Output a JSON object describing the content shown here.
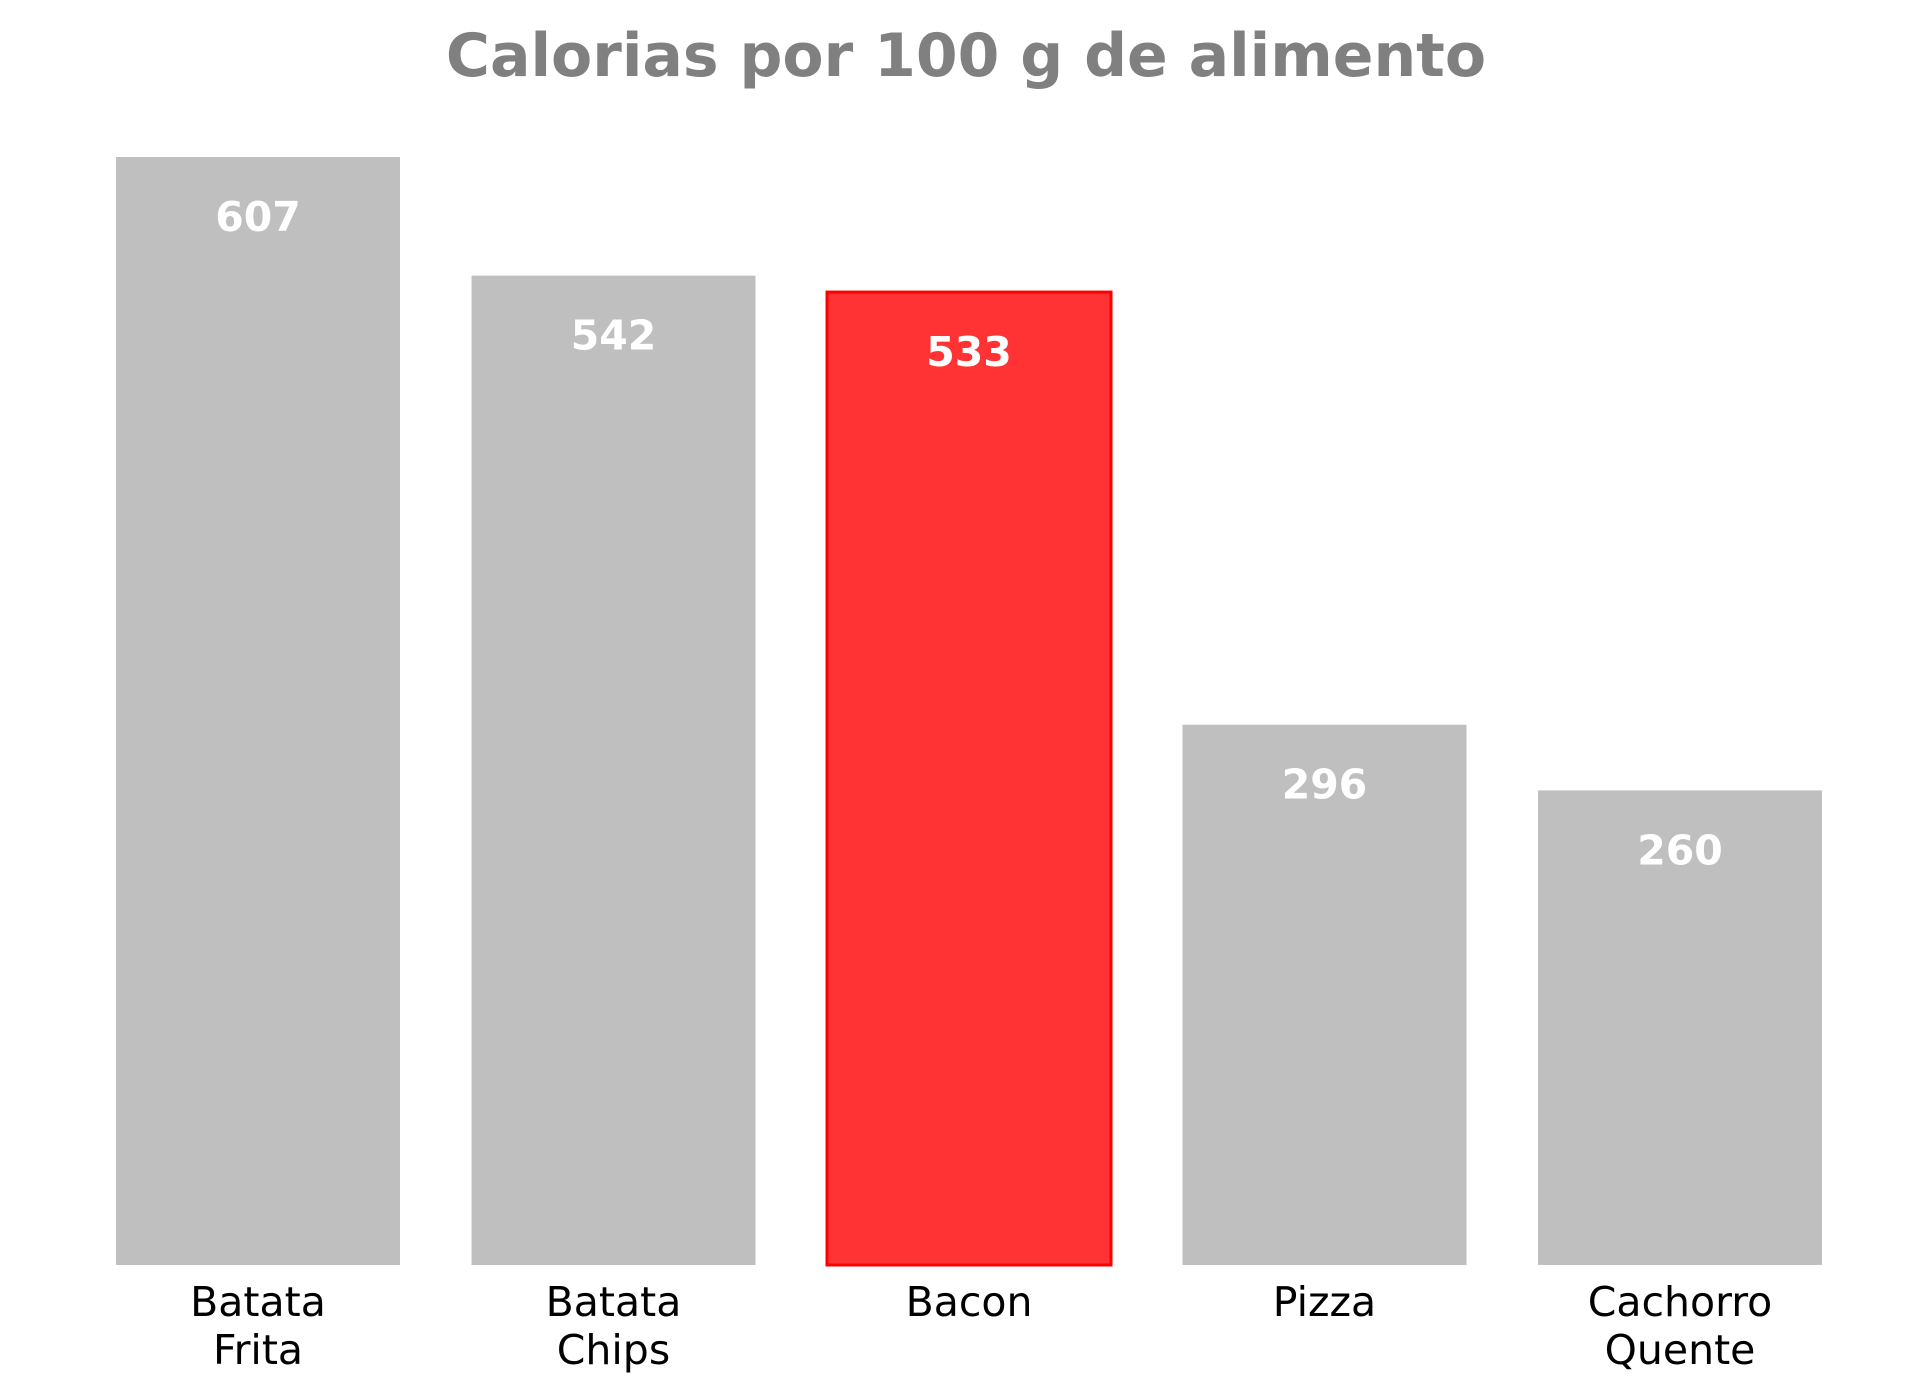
{
  "chart_data": {
    "type": "bar",
    "title": "Calorias por 100 g de alimento",
    "xlabel": "",
    "ylabel": "",
    "categories": [
      [
        "Batata",
        "Frita"
      ],
      [
        "Batata",
        "Chips"
      ],
      [
        "Bacon"
      ],
      [
        "Pizza"
      ],
      [
        "Cachorro",
        "Quente"
      ]
    ],
    "values": [
      607,
      542,
      533,
      296,
      260
    ],
    "data_labels": [
      "607",
      "542",
      "533",
      "296",
      "260"
    ],
    "highlight_index": 2,
    "ylim": [
      0,
      607
    ],
    "grid": false,
    "legend": "none",
    "axes_visible": false
  },
  "colors": {
    "title": "#808080",
    "bar_default": "#bfbfbf",
    "bar_highlight": "#ff3333",
    "bar_highlight_edge": "#ff0000",
    "value_label": "#ffffff",
    "category_label": "#000000"
  }
}
